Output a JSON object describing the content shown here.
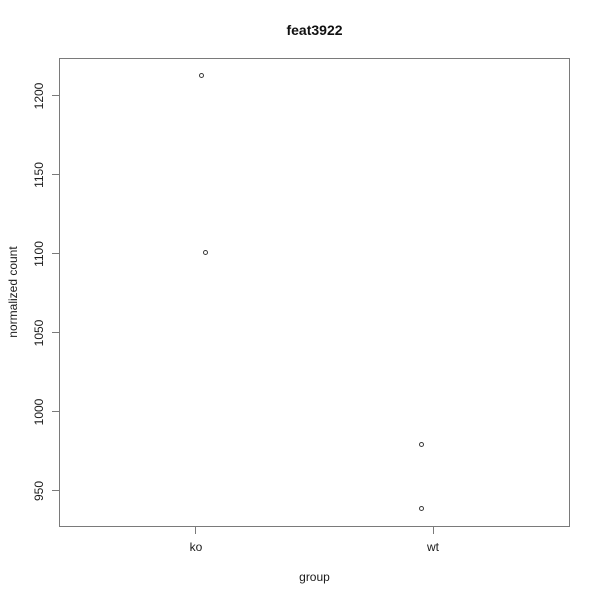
{
  "chart_data": {
    "type": "scatter",
    "title": "feat3922",
    "xlabel": "group",
    "ylabel": "normalized count",
    "categories": [
      "ko",
      "wt"
    ],
    "category_x": [
      1,
      2
    ],
    "yticks": [
      950,
      1000,
      1050,
      1100,
      1150,
      1200
    ],
    "axis": {
      "x_range": [
        0.422,
        2.578
      ],
      "y_range": [
        927,
        1224
      ],
      "grid": false,
      "box": true
    },
    "series": [
      {
        "name": "ko",
        "points": [
          {
            "x": 1.025,
            "y": 1213
          },
          {
            "x": 1.038,
            "y": 1101
          }
        ]
      },
      {
        "name": "wt",
        "points": [
          {
            "x": 1.952,
            "y": 979
          },
          {
            "x": 1.952,
            "y": 939
          }
        ]
      }
    ],
    "marker": "open-circle",
    "colors": {
      "foreground": "#1b1b1b",
      "box_line": "#7a7a7a",
      "background": "#ffffff"
    }
  }
}
